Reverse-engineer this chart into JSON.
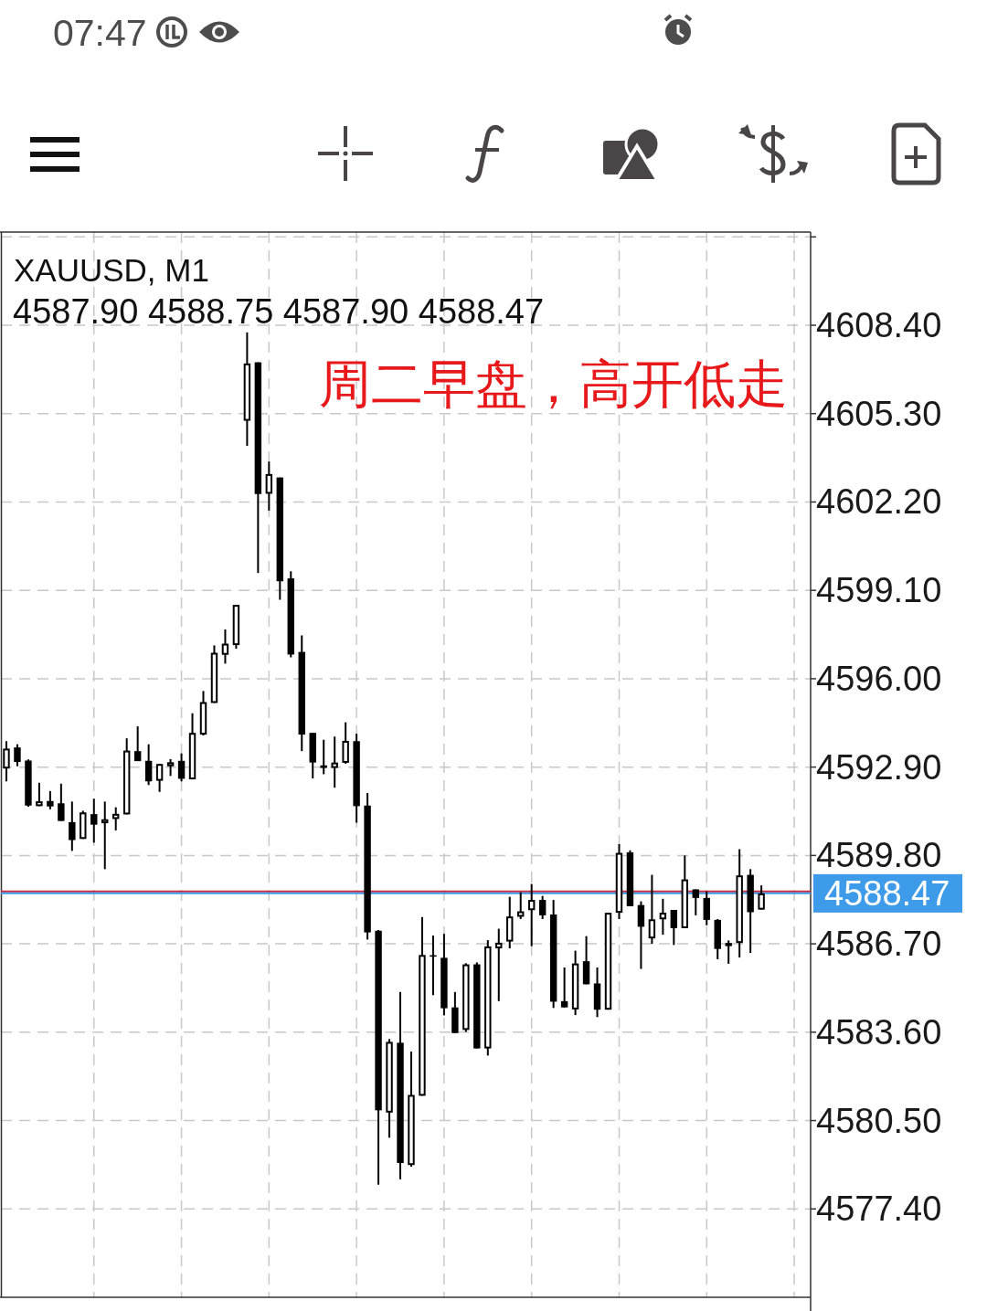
{
  "chart_data": {
    "type": "candlestick",
    "title": "XAUUSD, M1",
    "subtitle": "4587.90 4588.75 4587.90 4588.47",
    "annotations": [
      "周二早盘，高开低走",
      "07:47"
    ],
    "categories": [
      null,
      null,
      null,
      null,
      null,
      null,
      null,
      null,
      null,
      null,
      null,
      null,
      null,
      null,
      null,
      null,
      null,
      null,
      null,
      null,
      null,
      null,
      null,
      null,
      null,
      null,
      null,
      null,
      null,
      null,
      null,
      null,
      null,
      null,
      null,
      null,
      null,
      null,
      null,
      null,
      null,
      null,
      null,
      null,
      null,
      null,
      null,
      null,
      null,
      null,
      null,
      null,
      null,
      null,
      null,
      null,
      null,
      null,
      null,
      null,
      null,
      null,
      null,
      null,
      null,
      null,
      null,
      null,
      null,
      null,
      null,
      null,
      null,
      null
    ],
    "ohlc": [
      [
        4592.85,
        4593.81,
        4592.4,
        4593.55
      ],
      [
        4593.59,
        4593.7,
        4592.93,
        4593.08
      ],
      [
        4593.13,
        4593.17,
        4591.51,
        4591.55
      ],
      [
        4591.53,
        4592.35,
        4591.53,
        4591.7
      ],
      [
        4591.71,
        4592.06,
        4591.42,
        4591.52
      ],
      [
        4591.63,
        4592.32,
        4591.01,
        4591.01
      ],
      [
        4590.97,
        4591.69,
        4589.96,
        4590.34
      ],
      [
        4590.38,
        4591.37,
        4590.38,
        4591.31
      ],
      [
        4591.25,
        4591.79,
        4590.25,
        4590.88
      ],
      [
        4590.93,
        4591.69,
        4589.32,
        4591.07
      ],
      [
        4591.08,
        4591.49,
        4590.68,
        4591.26
      ],
      [
        4591.24,
        4593.91,
        4591.24,
        4593.48
      ],
      [
        4593.46,
        4594.33,
        4593.11,
        4593.11
      ],
      [
        4593.12,
        4593.7,
        4592.27,
        4592.4
      ],
      [
        4592.42,
        4593.01,
        4592.03,
        4593.01
      ],
      [
        4592.93,
        4593.18,
        4592.59,
        4593.07
      ],
      [
        4593.12,
        4593.38,
        4592.4,
        4592.49
      ],
      [
        4592.47,
        4594.79,
        4592.47,
        4594.1
      ],
      [
        4594.04,
        4595.57,
        4594.01,
        4595.18
      ],
      [
        4595.15,
        4597.17,
        4595.15,
        4596.91
      ],
      [
        4596.84,
        4597.73,
        4596.53,
        4597.23
      ],
      [
        4597.18,
        4598.59,
        4597.05,
        4598.59
      ],
      [
        4605.05,
        4608.15,
        4604.17,
        4607.06
      ],
      [
        4607.1,
        4607.1,
        4599.71,
        4602.48
      ],
      [
        4602.49,
        4603.62,
        4601.9,
        4603.18
      ],
      [
        4603.06,
        4603.06,
        4598.77,
        4599.42
      ],
      [
        4599.52,
        4599.77,
        4596.75,
        4596.85
      ],
      [
        4596.94,
        4597.52,
        4593.46,
        4594.04
      ],
      [
        4594.1,
        4594.1,
        4592.5,
        4593.06
      ],
      [
        4592.96,
        4593.86,
        4592.65,
        4592.87
      ],
      [
        4592.87,
        4593.97,
        4592.18,
        4593.06
      ],
      [
        4593.05,
        4594.47,
        4593.02,
        4593.82
      ],
      [
        4593.81,
        4594.07,
        4590.95,
        4591.53
      ],
      [
        4591.55,
        4591.99,
        4586.85,
        4587.1
      ],
      [
        4587.16,
        4587.18,
        4578.25,
        4580.86
      ],
      [
        4580.78,
        4583.36,
        4579.9,
        4583.26
      ],
      [
        4583.23,
        4585.01,
        4578.44,
        4579.01
      ],
      [
        4578.94,
        4582.92,
        4578.88,
        4581.4
      ],
      [
        4581.37,
        4587.64,
        4581.37,
        4586.31
      ],
      [
        4586.3,
        4586.99,
        4584.9,
        4586.25
      ],
      [
        4586.21,
        4587.05,
        4584.19,
        4584.44
      ],
      [
        4584.47,
        4585.01,
        4583.57,
        4583.57
      ],
      [
        4583.68,
        4586.02,
        4583.61,
        4585.98
      ],
      [
        4585.98,
        4586.05,
        4583.03,
        4583.03
      ],
      [
        4583.03,
        4586.83,
        4582.78,
        4586.61
      ],
      [
        4586.54,
        4587.23,
        4584.69,
        4586.74
      ],
      [
        4586.78,
        4588.35,
        4586.54,
        4587.66
      ],
      [
        4587.65,
        4588.51,
        4587.57,
        4587.84
      ],
      [
        4587.88,
        4588.8,
        4586.62,
        4588.24
      ],
      [
        4588.24,
        4588.38,
        4587.57,
        4587.7
      ],
      [
        4587.73,
        4588.24,
        4584.45,
        4584.67
      ],
      [
        4584.69,
        4585.87,
        4584.47,
        4584.47
      ],
      [
        4584.4,
        4586.46,
        4584.2,
        4586.01
      ],
      [
        4586.09,
        4586.97,
        4585.28,
        4585.28
      ],
      [
        4585.31,
        4585.87,
        4584.13,
        4584.39
      ],
      [
        4584.39,
        4587.79,
        4584.39,
        4587.79
      ],
      [
        4587.79,
        4590.2,
        4587.57,
        4589.89
      ],
      [
        4589.91,
        4589.98,
        4588.02,
        4588.02
      ],
      [
        4588.06,
        4588.19,
        4585.82,
        4587.3
      ],
      [
        4586.89,
        4589.12,
        4586.7,
        4587.56
      ],
      [
        4587.56,
        4588.28,
        4587.02,
        4587.79
      ],
      [
        4587.89,
        4587.89,
        4586.66,
        4587.25
      ],
      [
        4587.25,
        4589.8,
        4587.25,
        4588.96
      ],
      [
        4588.61,
        4588.61,
        4587.7,
        4588.31
      ],
      [
        4588.31,
        4588.54,
        4587.35,
        4587.54
      ],
      [
        4587.54,
        4587.57,
        4586.16,
        4586.52
      ],
      [
        4586.62,
        4586.82,
        4586.0,
        4586.73
      ],
      [
        4586.73,
        4590.02,
        4586.22,
        4589.1
      ],
      [
        4589.12,
        4589.32,
        4586.38,
        4587.81
      ],
      [
        4587.9,
        4588.75,
        4587.9,
        4588.47
      ],
      null,
      null,
      null,
      null
    ],
    "ylim": [
      4574.3,
      4611.67
    ],
    "yticks": [
      {
        "value": 4611.5,
        "label": null
      },
      {
        "value": 4608.4,
        "label": "4608.40"
      },
      {
        "value": 4605.3,
        "label": "4605.30"
      },
      {
        "value": 4602.2,
        "label": "4602.20"
      },
      {
        "value": 4599.1,
        "label": "4599.10"
      },
      {
        "value": 4596,
        "label": "4596.00"
      },
      {
        "value": 4592.9,
        "label": "4592.90"
      },
      {
        "value": 4589.8,
        "label": "4589.80"
      },
      {
        "value": 4586.7,
        "label": "4586.70"
      },
      {
        "value": 4583.6,
        "label": "4583.60"
      },
      {
        "value": 4580.5,
        "label": "4580.50"
      },
      {
        "value": 4577.4,
        "label": "4577.40"
      }
    ],
    "grid": true,
    "ref_lines": [
      {
        "axis": "y",
        "value": 4588.54,
        "color": "#c8283c"
      },
      {
        "axis": "y",
        "value": 4588.47,
        "label": "4588.47",
        "color": "#3d9be9"
      }
    ]
  }
}
